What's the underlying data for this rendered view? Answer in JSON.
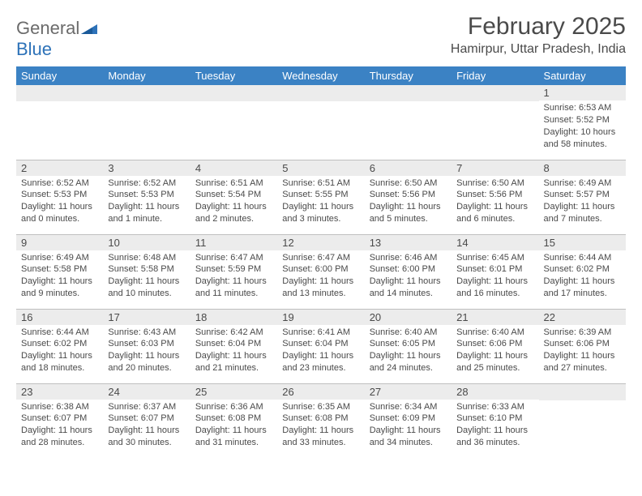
{
  "logo": {
    "word1": "General",
    "word2": "Blue"
  },
  "title": "February 2025",
  "location": "Hamirpur, Uttar Pradesh, India",
  "colors": {
    "header_bg": "#3b82c4",
    "header_text": "#ffffff",
    "daynum_bg": "#ececec",
    "border": "#bfbfbf",
    "text": "#4a4a4a",
    "logo_gray": "#6b6b6b",
    "logo_blue": "#2d72b8"
  },
  "weekdays": [
    "Sunday",
    "Monday",
    "Tuesday",
    "Wednesday",
    "Thursday",
    "Friday",
    "Saturday"
  ],
  "weeks": [
    [
      {
        "empty": true
      },
      {
        "empty": true
      },
      {
        "empty": true
      },
      {
        "empty": true
      },
      {
        "empty": true
      },
      {
        "empty": true
      },
      {
        "day": "1",
        "sunrise": "Sunrise: 6:53 AM",
        "sunset": "Sunset: 5:52 PM",
        "daylight": "Daylight: 10 hours and 58 minutes."
      }
    ],
    [
      {
        "day": "2",
        "sunrise": "Sunrise: 6:52 AM",
        "sunset": "Sunset: 5:53 PM",
        "daylight": "Daylight: 11 hours and 0 minutes."
      },
      {
        "day": "3",
        "sunrise": "Sunrise: 6:52 AM",
        "sunset": "Sunset: 5:53 PM",
        "daylight": "Daylight: 11 hours and 1 minute."
      },
      {
        "day": "4",
        "sunrise": "Sunrise: 6:51 AM",
        "sunset": "Sunset: 5:54 PM",
        "daylight": "Daylight: 11 hours and 2 minutes."
      },
      {
        "day": "5",
        "sunrise": "Sunrise: 6:51 AM",
        "sunset": "Sunset: 5:55 PM",
        "daylight": "Daylight: 11 hours and 3 minutes."
      },
      {
        "day": "6",
        "sunrise": "Sunrise: 6:50 AM",
        "sunset": "Sunset: 5:56 PM",
        "daylight": "Daylight: 11 hours and 5 minutes."
      },
      {
        "day": "7",
        "sunrise": "Sunrise: 6:50 AM",
        "sunset": "Sunset: 5:56 PM",
        "daylight": "Daylight: 11 hours and 6 minutes."
      },
      {
        "day": "8",
        "sunrise": "Sunrise: 6:49 AM",
        "sunset": "Sunset: 5:57 PM",
        "daylight": "Daylight: 11 hours and 7 minutes."
      }
    ],
    [
      {
        "day": "9",
        "sunrise": "Sunrise: 6:49 AM",
        "sunset": "Sunset: 5:58 PM",
        "daylight": "Daylight: 11 hours and 9 minutes."
      },
      {
        "day": "10",
        "sunrise": "Sunrise: 6:48 AM",
        "sunset": "Sunset: 5:58 PM",
        "daylight": "Daylight: 11 hours and 10 minutes."
      },
      {
        "day": "11",
        "sunrise": "Sunrise: 6:47 AM",
        "sunset": "Sunset: 5:59 PM",
        "daylight": "Daylight: 11 hours and 11 minutes."
      },
      {
        "day": "12",
        "sunrise": "Sunrise: 6:47 AM",
        "sunset": "Sunset: 6:00 PM",
        "daylight": "Daylight: 11 hours and 13 minutes."
      },
      {
        "day": "13",
        "sunrise": "Sunrise: 6:46 AM",
        "sunset": "Sunset: 6:00 PM",
        "daylight": "Daylight: 11 hours and 14 minutes."
      },
      {
        "day": "14",
        "sunrise": "Sunrise: 6:45 AM",
        "sunset": "Sunset: 6:01 PM",
        "daylight": "Daylight: 11 hours and 16 minutes."
      },
      {
        "day": "15",
        "sunrise": "Sunrise: 6:44 AM",
        "sunset": "Sunset: 6:02 PM",
        "daylight": "Daylight: 11 hours and 17 minutes."
      }
    ],
    [
      {
        "day": "16",
        "sunrise": "Sunrise: 6:44 AM",
        "sunset": "Sunset: 6:02 PM",
        "daylight": "Daylight: 11 hours and 18 minutes."
      },
      {
        "day": "17",
        "sunrise": "Sunrise: 6:43 AM",
        "sunset": "Sunset: 6:03 PM",
        "daylight": "Daylight: 11 hours and 20 minutes."
      },
      {
        "day": "18",
        "sunrise": "Sunrise: 6:42 AM",
        "sunset": "Sunset: 6:04 PM",
        "daylight": "Daylight: 11 hours and 21 minutes."
      },
      {
        "day": "19",
        "sunrise": "Sunrise: 6:41 AM",
        "sunset": "Sunset: 6:04 PM",
        "daylight": "Daylight: 11 hours and 23 minutes."
      },
      {
        "day": "20",
        "sunrise": "Sunrise: 6:40 AM",
        "sunset": "Sunset: 6:05 PM",
        "daylight": "Daylight: 11 hours and 24 minutes."
      },
      {
        "day": "21",
        "sunrise": "Sunrise: 6:40 AM",
        "sunset": "Sunset: 6:06 PM",
        "daylight": "Daylight: 11 hours and 25 minutes."
      },
      {
        "day": "22",
        "sunrise": "Sunrise: 6:39 AM",
        "sunset": "Sunset: 6:06 PM",
        "daylight": "Daylight: 11 hours and 27 minutes."
      }
    ],
    [
      {
        "day": "23",
        "sunrise": "Sunrise: 6:38 AM",
        "sunset": "Sunset: 6:07 PM",
        "daylight": "Daylight: 11 hours and 28 minutes."
      },
      {
        "day": "24",
        "sunrise": "Sunrise: 6:37 AM",
        "sunset": "Sunset: 6:07 PM",
        "daylight": "Daylight: 11 hours and 30 minutes."
      },
      {
        "day": "25",
        "sunrise": "Sunrise: 6:36 AM",
        "sunset": "Sunset: 6:08 PM",
        "daylight": "Daylight: 11 hours and 31 minutes."
      },
      {
        "day": "26",
        "sunrise": "Sunrise: 6:35 AM",
        "sunset": "Sunset: 6:08 PM",
        "daylight": "Daylight: 11 hours and 33 minutes."
      },
      {
        "day": "27",
        "sunrise": "Sunrise: 6:34 AM",
        "sunset": "Sunset: 6:09 PM",
        "daylight": "Daylight: 11 hours and 34 minutes."
      },
      {
        "day": "28",
        "sunrise": "Sunrise: 6:33 AM",
        "sunset": "Sunset: 6:10 PM",
        "daylight": "Daylight: 11 hours and 36 minutes."
      },
      {
        "empty": true,
        "noborder": false
      }
    ]
  ]
}
